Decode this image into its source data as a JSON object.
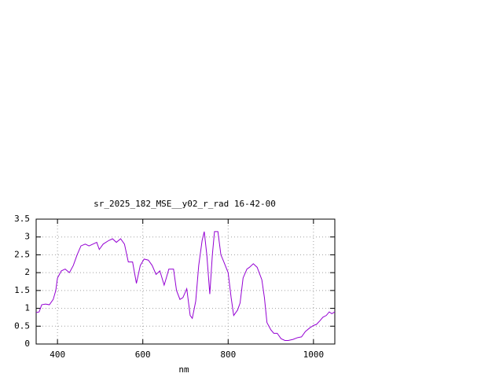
{
  "chart_data": {
    "type": "line",
    "title": "sr_2025_182_MSE__y02_r_rad 16-42-00",
    "x_label": "nm",
    "xlim": [
      350,
      1050
    ],
    "xticks": [
      400,
      600,
      800,
      1000
    ],
    "ylim": [
      0,
      3.5
    ],
    "yticks": [
      0,
      0.5,
      1,
      1.5,
      2,
      2.5,
      3,
      3.5
    ],
    "grid": true,
    "series": [
      {
        "color": "#9400d3",
        "x": [
          350,
          357,
          363,
          372,
          381,
          390,
          396,
          400,
          409,
          418,
          428,
          437,
          446,
          455,
          465,
          474,
          483,
          492,
          498,
          507,
          520,
          529,
          538,
          548,
          557,
          566,
          576,
          585,
          594,
          603,
          613,
          622,
          631,
          640,
          650,
          655,
          661,
          672,
          679,
          687,
          694,
          703,
          711,
          716,
          724,
          731,
          739,
          744,
          750,
          757,
          763,
          768,
          776,
          783,
          790,
          800,
          807,
          813,
          822,
          828,
          835,
          844,
          850,
          859,
          868,
          879,
          885,
          891,
          900,
          907,
          915,
          924,
          933,
          941,
          952,
          963,
          972,
          981,
          991,
          1000,
          1007,
          1015,
          1022,
          1030,
          1037,
          1043,
          1050
        ],
        "values": [
          0.88,
          0.9,
          1.1,
          1.12,
          1.1,
          1.25,
          1.5,
          1.85,
          2.05,
          2.1,
          2.0,
          2.2,
          2.5,
          2.75,
          2.8,
          2.75,
          2.8,
          2.85,
          2.65,
          2.8,
          2.9,
          2.95,
          2.85,
          2.95,
          2.8,
          2.3,
          2.3,
          1.7,
          2.2,
          2.38,
          2.35,
          2.2,
          1.95,
          2.05,
          1.65,
          1.85,
          2.1,
          2.1,
          1.5,
          1.25,
          1.3,
          1.55,
          0.8,
          0.72,
          1.2,
          2.2,
          2.9,
          3.15,
          2.5,
          1.4,
          2.5,
          3.15,
          3.15,
          2.5,
          2.3,
          2.0,
          1.3,
          0.8,
          0.95,
          1.15,
          1.85,
          2.1,
          2.15,
          2.25,
          2.15,
          1.8,
          1.3,
          0.6,
          0.4,
          0.3,
          0.3,
          0.15,
          0.1,
          0.1,
          0.13,
          0.18,
          0.2,
          0.35,
          0.45,
          0.52,
          0.55,
          0.65,
          0.75,
          0.8,
          0.9,
          0.85,
          0.9
        ]
      }
    ]
  }
}
